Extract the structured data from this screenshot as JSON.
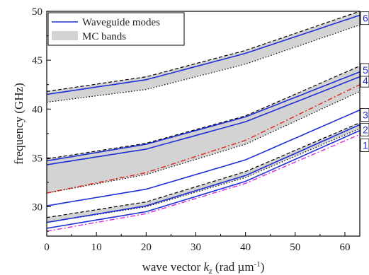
{
  "chart_data": {
    "type": "line",
    "xlabel_prefix": "wave vector ",
    "xlabel_var": "k",
    "xlabel_sub": "z",
    "xlabel_unit_open": " (rad µm",
    "xlabel_sup": "-1",
    "xlabel_close": ")",
    "ylabel": "frequency (GHz)",
    "xlim": [
      0,
      63
    ],
    "ylim": [
      27,
      50
    ],
    "xticks": [
      0,
      10,
      20,
      30,
      40,
      50,
      60
    ],
    "yticks": [
      30,
      35,
      40,
      45,
      50
    ],
    "legend": {
      "position": "top-left",
      "entries": [
        {
          "label": "Waveguide modes",
          "kind": "line",
          "color": "#1f2fd6"
        },
        {
          "label": "MC bands",
          "kind": "fill",
          "color": "#d3d3d3"
        }
      ]
    },
    "colors": {
      "waveguide": "#1f2fd6",
      "band_fill": "#d3d3d3",
      "band_edge": "#000000",
      "red_curve": "#e0241b",
      "magenta_curve": "#d62fd6"
    },
    "bands": [
      {
        "upper": {
          "x": [
            0,
            20,
            40,
            63
          ],
          "y": [
            28.9,
            30.5,
            33.6,
            38.6
          ]
        },
        "lower": {
          "x": [
            0,
            20,
            40,
            63
          ],
          "y": [
            28.4,
            30.0,
            33.0,
            38.0
          ]
        }
      },
      {
        "upper": {
          "x": [
            0,
            20,
            40,
            63
          ],
          "y": [
            34.9,
            36.5,
            39.3,
            44.4
          ]
        },
        "lower": {
          "x": [
            0,
            20,
            40,
            63
          ],
          "y": [
            31.4,
            33.3,
            36.4,
            41.8
          ]
        }
      },
      {
        "upper": {
          "x": [
            0,
            20,
            40,
            63
          ],
          "y": [
            41.8,
            43.3,
            46.0,
            50.0
          ]
        },
        "lower": {
          "x": [
            0,
            20,
            40,
            63
          ],
          "y": [
            40.7,
            42.0,
            44.6,
            48.6
          ]
        }
      }
    ],
    "series": [
      {
        "mode": "1",
        "x": [
          0,
          20,
          40,
          63
        ],
        "y": [
          27.8,
          29.5,
          32.6,
          37.8
        ]
      },
      {
        "mode": "2",
        "x": [
          0,
          20,
          40,
          63
        ],
        "y": [
          28.4,
          30.1,
          33.2,
          38.4
        ]
      },
      {
        "mode": "3",
        "x": [
          0,
          20,
          40,
          63
        ],
        "y": [
          30.1,
          31.8,
          34.8,
          39.9
        ]
      },
      {
        "mode": "4",
        "x": [
          0,
          20,
          40,
          63
        ],
        "y": [
          34.3,
          35.9,
          38.7,
          43.3
        ]
      },
      {
        "mode": "5",
        "x": [
          0,
          20,
          40,
          63
        ],
        "y": [
          34.7,
          36.4,
          39.2,
          43.8
        ]
      },
      {
        "mode": "6",
        "x": [
          0,
          20,
          40,
          63
        ],
        "y": [
          41.5,
          43.0,
          45.7,
          49.6
        ]
      }
    ],
    "extra_curves": [
      {
        "style": "dash-dot",
        "color": "#e0241b",
        "x": [
          0,
          20,
          40,
          63
        ],
        "y": [
          31.4,
          33.5,
          36.8,
          42.5
        ]
      },
      {
        "style": "dash-dot",
        "color": "#d62fd6",
        "x": [
          0,
          20,
          40,
          63
        ],
        "y": [
          27.5,
          29.3,
          32.4,
          37.4
        ]
      }
    ],
    "mode_labels": [
      "1",
      "2",
      "3",
      "4",
      "5",
      "6"
    ],
    "mode_label_y": [
      36.3,
      37.9,
      39.4,
      42.9,
      44.0,
      49.3
    ]
  }
}
